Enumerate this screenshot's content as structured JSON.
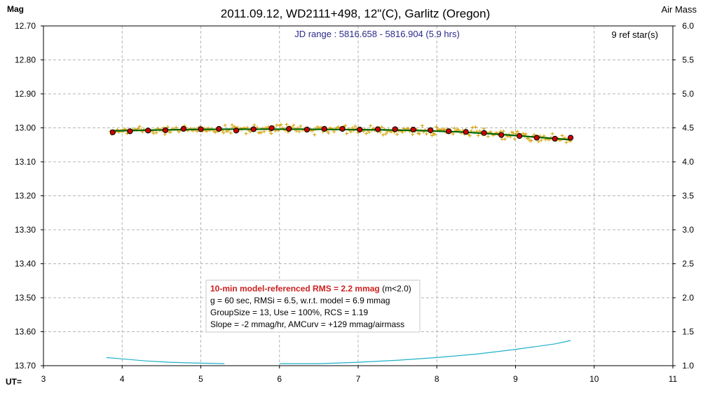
{
  "chart_data": {
    "type": "scatter",
    "title": "2011.09.12, WD2111+498, 12\"(C), Garlitz (Oregon)",
    "ylabel": "Mag",
    "y2label": "Air Mass",
    "xlabel": "UT=",
    "xlim": [
      3,
      11
    ],
    "ylim": [
      12.7,
      13.7
    ],
    "y_inverted": true,
    "y2lim": [
      1.0,
      6.0
    ],
    "x_ticks": [
      "3",
      "4",
      "5",
      "6",
      "7",
      "8",
      "9",
      "10",
      "11"
    ],
    "y_ticks": [
      "12.70",
      "12.80",
      "12.90",
      "13.00",
      "13.10",
      "13.20",
      "13.30",
      "13.40",
      "13.50",
      "13.60",
      "13.70"
    ],
    "y2_ticks": [
      "6.0",
      "5.5",
      "5.0",
      "4.5",
      "4.0",
      "3.5",
      "3.0",
      "2.5",
      "2.0",
      "1.5",
      "1.0"
    ],
    "grid": true,
    "annotations": {
      "jd_range": "JD range : 5816.658 - 5816.904 (5.9 hrs)",
      "ref_stars": "9 ref star(s)"
    },
    "stats_box": {
      "headline": "10-min model-referenced RMS = 2.2 mmag",
      "headline_note": " (m<2.0)",
      "line2": "g = 60 sec, RMSi = 6.5, w.r.t. model = 6.9 mmag",
      "line3": "GroupSize = 13, Use = 100%, RCS = 1.19",
      "line4": "Slope = -2 mmag/hr, AMCurv = +129 mmag/airmass"
    },
    "colors": {
      "raw_points": "#d4a000",
      "binned_points": "#cc0000",
      "model_line": "#006600",
      "airmass_line": "#20b0c8",
      "headline": "#cc2020",
      "jd_text": "#2a2a8a"
    },
    "binned_points": {
      "x": [
        3.88,
        4.1,
        4.33,
        4.55,
        4.78,
        5.0,
        5.23,
        5.45,
        5.67,
        5.9,
        6.12,
        6.35,
        6.57,
        6.8,
        7.02,
        7.25,
        7.47,
        7.7,
        7.92,
        8.15,
        8.37,
        8.6,
        8.82,
        9.05,
        9.27,
        9.5,
        9.7
      ],
      "y": [
        13.013,
        13.01,
        13.008,
        13.007,
        13.003,
        13.004,
        13.003,
        13.008,
        13.004,
        13.001,
        13.003,
        13.005,
        13.003,
        13.003,
        13.005,
        13.004,
        13.004,
        13.005,
        13.007,
        13.01,
        13.012,
        13.015,
        13.021,
        13.024,
        13.029,
        13.032,
        13.029
      ]
    },
    "model_line": {
      "x": [
        3.85,
        4.3,
        4.8,
        5.3,
        5.8,
        6.3,
        6.8,
        7.3,
        7.8,
        8.3,
        8.8,
        9.3,
        9.7
      ],
      "y": [
        13.009,
        13.007,
        13.005,
        13.004,
        13.004,
        13.004,
        13.005,
        13.006,
        13.008,
        13.012,
        13.019,
        13.028,
        13.035
      ]
    },
    "airmass_curve": {
      "segments": [
        {
          "x": [
            3.8,
            4.0,
            4.3,
            4.6,
            4.9,
            5.3
          ],
          "y": [
            1.12,
            1.1,
            1.07,
            1.05,
            1.04,
            1.03
          ]
        },
        {
          "x": [
            6.0,
            6.5,
            7.0,
            7.5,
            8.0,
            8.5,
            9.0,
            9.5,
            9.7
          ],
          "y": [
            1.03,
            1.03,
            1.05,
            1.08,
            1.12,
            1.17,
            1.24,
            1.32,
            1.37
          ]
        }
      ]
    }
  }
}
